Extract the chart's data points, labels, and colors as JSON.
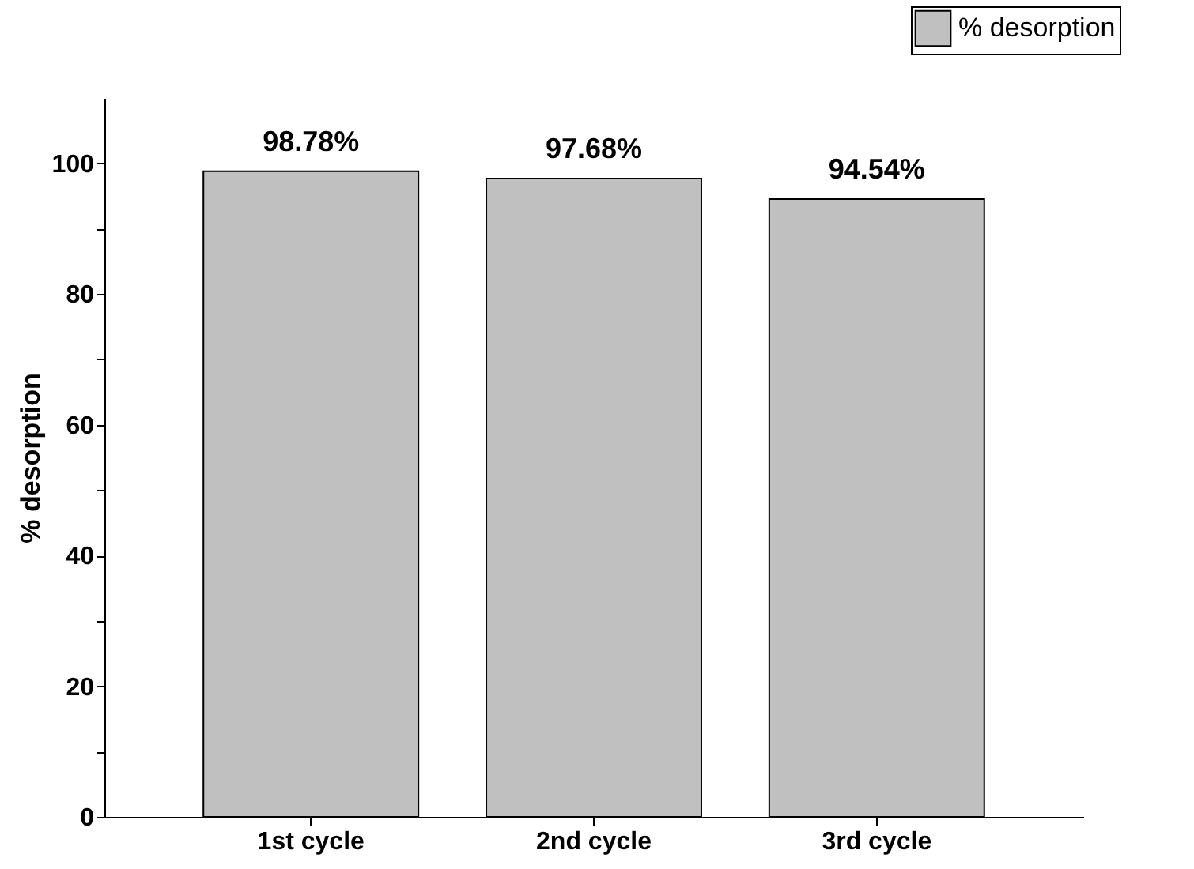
{
  "chart_data": {
    "type": "bar",
    "ylabel": "% desorption",
    "categories": [
      "1st cycle",
      "2nd cycle",
      "3rd cycle"
    ],
    "series": [
      {
        "name": "% desorption",
        "color": "#c0c0c0",
        "values": [
          98.78,
          97.68,
          94.54
        ]
      }
    ],
    "value_labels": [
      "98.78%",
      "97.68%",
      "94.54%"
    ],
    "ylim": [
      0,
      110
    ],
    "yticks": [
      0,
      {
        "value": 10,
        "label": null
      },
      20,
      {
        "value": 30,
        "label": null
      },
      40,
      {
        "value": 50,
        "label": null
      },
      60,
      {
        "value": 70,
        "label": null
      },
      80,
      {
        "value": 90,
        "label": null
      },
      100
    ],
    "grid": false,
    "legend": "top right"
  }
}
